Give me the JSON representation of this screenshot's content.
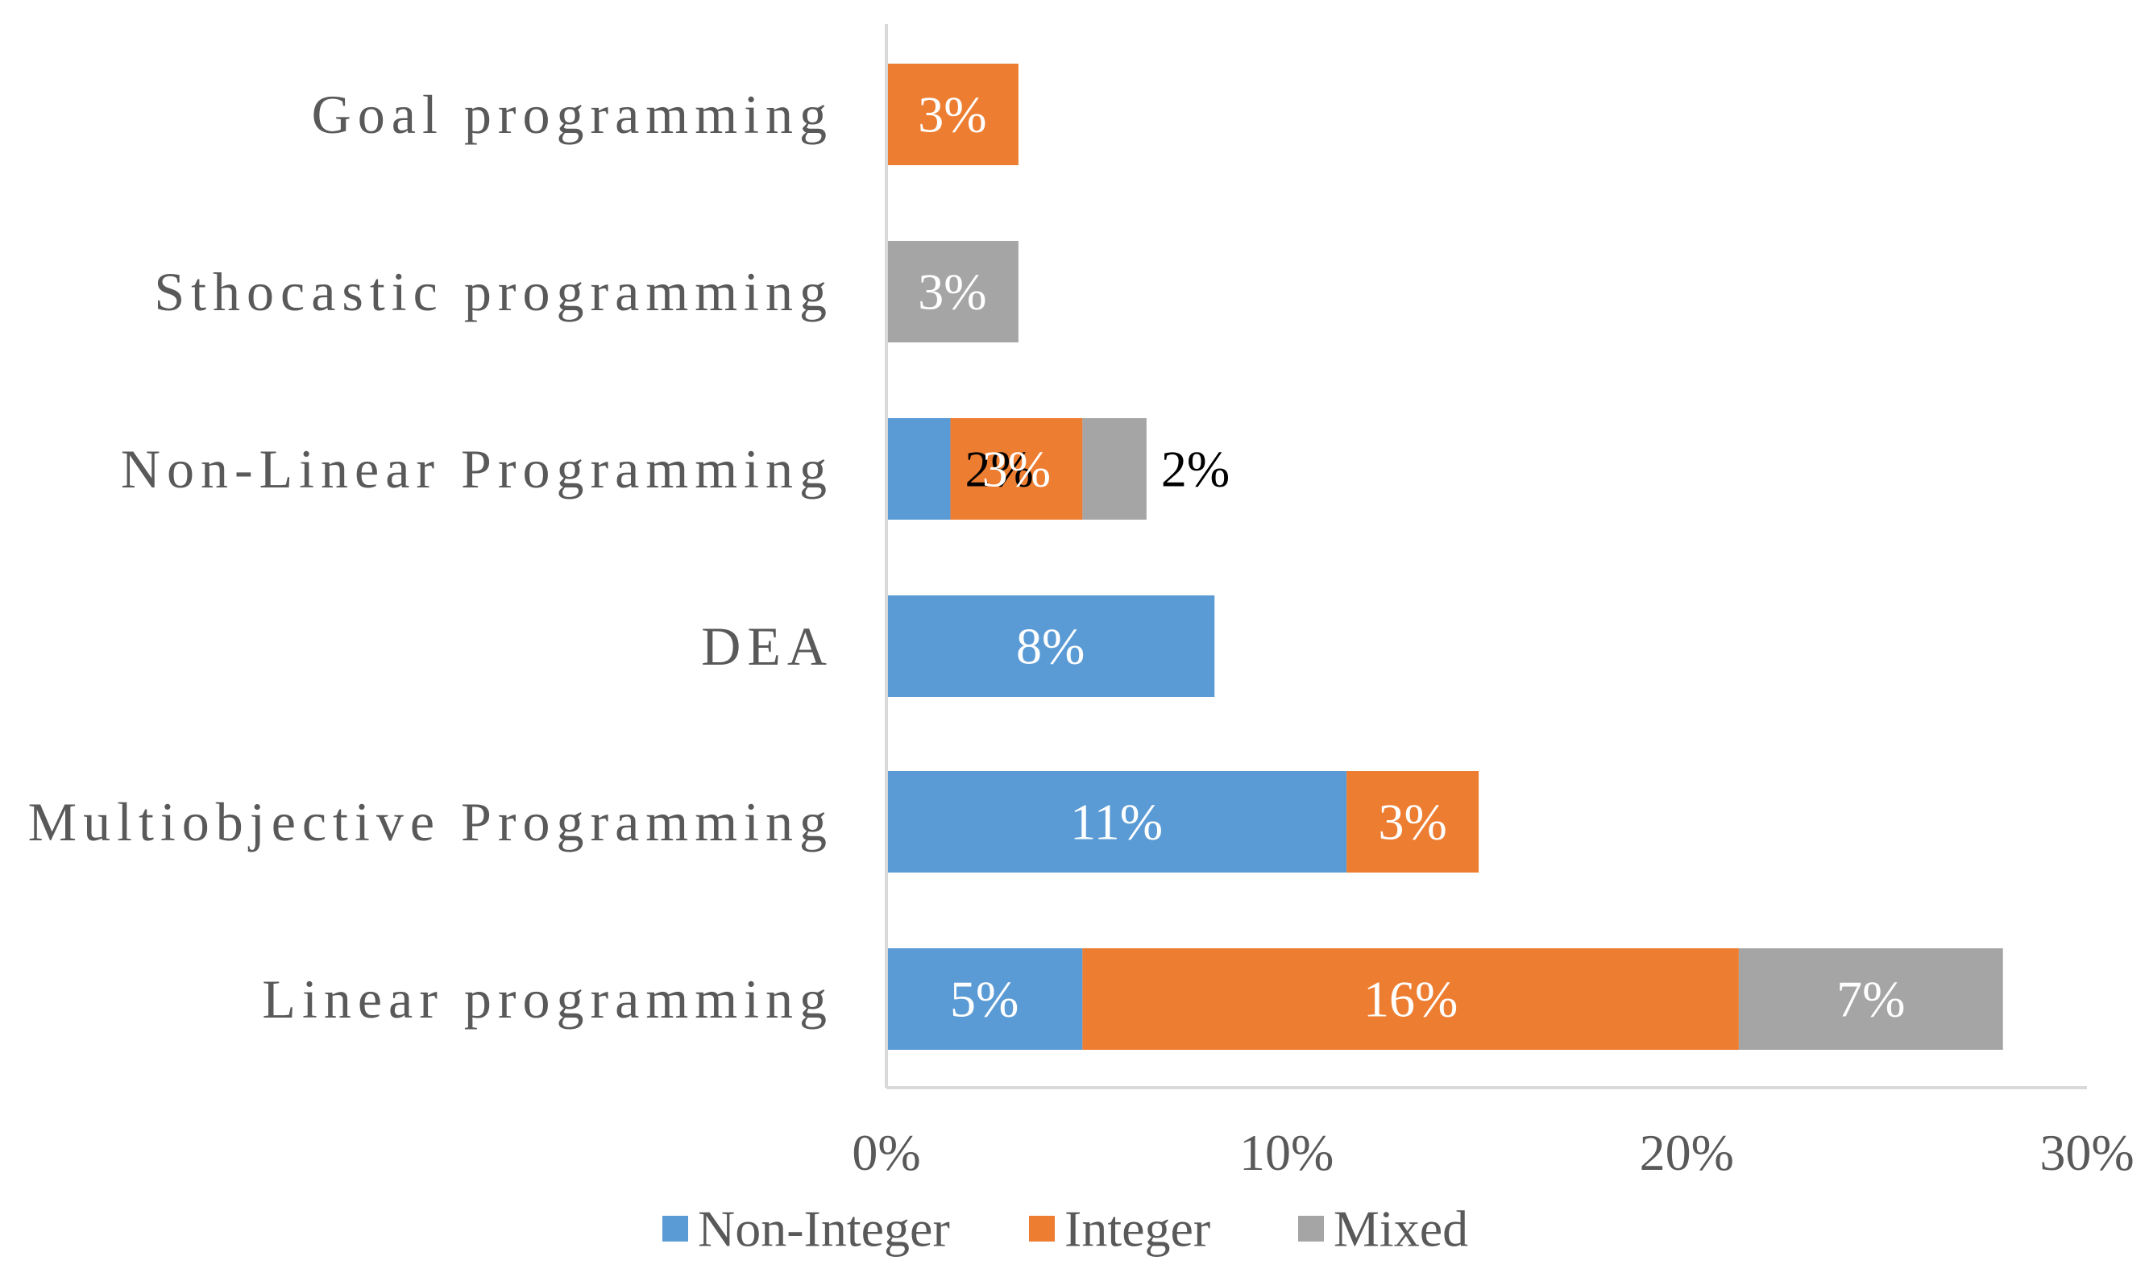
{
  "chart_data": {
    "type": "bar",
    "orientation": "horizontal",
    "stacked": true,
    "title": "",
    "xlabel": "",
    "ylabel": "",
    "xlim": [
      0,
      30
    ],
    "x_ticks": [
      0,
      10,
      20,
      30
    ],
    "x_tick_labels": [
      "0%",
      "10%",
      "20%",
      "30%"
    ],
    "grid": false,
    "legend_position": "bottom",
    "categories": [
      "Goal programming",
      "Sthocastic programming",
      "Non-Linear Programming",
      "DEA",
      "Multiobjective Programming",
      "Linear programming"
    ],
    "series": [
      {
        "name": "Non-Integer",
        "color": "#5b9bd5",
        "values": [
          0,
          0,
          1.6,
          8.2,
          11.5,
          4.9
        ],
        "labels": [
          "",
          "",
          "2%",
          "8%",
          "11%",
          "5%"
        ]
      },
      {
        "name": "Integer",
        "color": "#ed7d31",
        "values": [
          3.3,
          0,
          3.3,
          0,
          3.3,
          16.4
        ],
        "labels": [
          "3%",
          "",
          "3%",
          "",
          "3%",
          "16%"
        ]
      },
      {
        "name": "Mixed",
        "color": "#a5a5a5",
        "values": [
          0,
          3.3,
          1.6,
          0,
          0,
          6.6
        ],
        "labels": [
          "",
          "3%",
          "2%",
          "",
          "",
          "7%"
        ]
      }
    ]
  }
}
